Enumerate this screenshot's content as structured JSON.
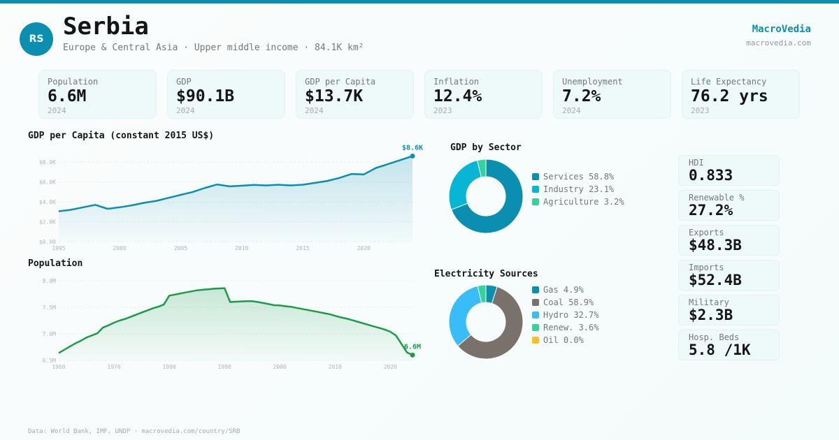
{
  "header": {
    "country_code": "RS",
    "title": "Serbia",
    "subtitle": "Europe & Central Asia · Upper middle income · 84.1K km²",
    "brand": "MacroVedia",
    "brand_url": "macrovedia.com"
  },
  "colors": {
    "accent": "#0a8fb0",
    "population_line": "#1a9c4a"
  },
  "kpis": [
    {
      "label": "Population",
      "value": "6.6M",
      "year": "2024"
    },
    {
      "label": "GDP",
      "value": "$90.1B",
      "year": "2024"
    },
    {
      "label": "GDP per Capita",
      "value": "$13.7K",
      "year": "2024"
    },
    {
      "label": "Inflation",
      "value": "12.4%",
      "year": "2023"
    },
    {
      "label": "Unemployment",
      "value": "7.2%",
      "year": "2024"
    },
    {
      "label": "Life Expectancy",
      "value": "76.2 yrs",
      "year": "2023"
    }
  ],
  "side_stats": [
    {
      "label": "HDI",
      "value": "0.833"
    },
    {
      "label": "Renewable %",
      "value": "27.2%"
    },
    {
      "label": "Exports",
      "value": "$48.3B"
    },
    {
      "label": "Imports",
      "value": "$52.4B"
    },
    {
      "label": "Military",
      "value": "$2.3B"
    },
    {
      "label": "Hosp. Beds",
      "value": "5.8 /1K"
    }
  ],
  "footer": "Data: World Bank, IMF, UNDP · macrovedia.com/country/SRB",
  "chart_data": [
    {
      "id": "gdp_per_capita",
      "type": "area",
      "title": "GDP per Capita (constant 2015 US$)",
      "color": "#0a8fb0",
      "x": [
        1995,
        1996,
        1997,
        1998,
        1999,
        2000,
        2001,
        2002,
        2003,
        2004,
        2005,
        2006,
        2007,
        2008,
        2009,
        2010,
        2011,
        2012,
        2013,
        2014,
        2015,
        2016,
        2017,
        2018,
        2019,
        2020,
        2021,
        2022,
        2023,
        2024
      ],
      "values": [
        3050,
        3200,
        3450,
        3700,
        3300,
        3450,
        3650,
        3900,
        4100,
        4400,
        4700,
        5000,
        5400,
        5750,
        5550,
        5620,
        5700,
        5650,
        5720,
        5650,
        5720,
        5900,
        6100,
        6400,
        6800,
        6750,
        7400,
        7800,
        8200,
        8600
      ],
      "ylim": [
        0,
        8000
      ],
      "yticks": [
        0,
        2000,
        4000,
        6000,
        8000
      ],
      "ytick_labels": [
        "$0.00",
        "$2.0K",
        "$4.0K",
        "$6.0K",
        "$8.0K"
      ],
      "xticks": [
        1995,
        2000,
        2005,
        2010,
        2015,
        2020
      ],
      "xtick_labels": [
        "1995",
        "2000",
        "2005",
        "2010",
        "2015",
        "2020"
      ],
      "end_label": "$8.6K",
      "grid": true
    },
    {
      "id": "population",
      "type": "area",
      "title": "Population",
      "color": "#1a9c4a",
      "x": [
        1960,
        1961,
        1962,
        1963,
        1964,
        1965,
        1966,
        1967,
        1968,
        1969,
        1970,
        1971,
        1972,
        1973,
        1974,
        1975,
        1976,
        1977,
        1978,
        1979,
        1980,
        1981,
        1982,
        1983,
        1984,
        1985,
        1986,
        1987,
        1988,
        1989,
        1990,
        1991,
        1992,
        1993,
        1994,
        1995,
        1996,
        1997,
        1998,
        1999,
        2000,
        2001,
        2002,
        2003,
        2004,
        2005,
        2006,
        2007,
        2008,
        2009,
        2010,
        2011,
        2012,
        2013,
        2014,
        2015,
        2016,
        2017,
        2018,
        2019,
        2020,
        2021,
        2022,
        2023,
        2024
      ],
      "values": [
        6.64,
        6.7,
        6.76,
        6.82,
        6.87,
        6.93,
        6.97,
        7.01,
        7.12,
        7.16,
        7.21,
        7.25,
        7.28,
        7.32,
        7.36,
        7.4,
        7.44,
        7.48,
        7.51,
        7.55,
        7.72,
        7.74,
        7.76,
        7.78,
        7.8,
        7.82,
        7.83,
        7.84,
        7.85,
        7.855,
        7.86,
        7.6,
        7.605,
        7.61,
        7.615,
        7.615,
        7.6,
        7.58,
        7.56,
        7.54,
        7.535,
        7.52,
        7.51,
        7.49,
        7.47,
        7.45,
        7.43,
        7.41,
        7.39,
        7.37,
        7.34,
        7.31,
        7.29,
        7.26,
        7.23,
        7.2,
        7.17,
        7.14,
        7.11,
        7.08,
        7.04,
        6.97,
        6.81,
        6.65,
        6.6
      ],
      "ylim": [
        6.5,
        8.0
      ],
      "yticks": [
        6.5,
        7.0,
        7.5,
        8.0
      ],
      "ytick_labels": [
        "6.5M",
        "7.0M",
        "7.5M",
        "8.0M"
      ],
      "xticks": [
        1960,
        1970,
        1980,
        1990,
        2000,
        2010,
        2020
      ],
      "xtick_labels": [
        "1960",
        "1970",
        "1980",
        "1990",
        "2000",
        "2010",
        "2020"
      ],
      "end_label": "6.6M",
      "grid": true
    },
    {
      "id": "gdp_by_sector",
      "type": "pie",
      "title": "GDP by Sector",
      "categories": [
        "Services",
        "Industry",
        "Agriculture"
      ],
      "values": [
        58.8,
        23.1,
        3.2
      ],
      "labels": [
        "Services 58.8%",
        "Industry 23.1%",
        "Agriculture 3.2%"
      ],
      "colors": [
        "#0a8fb0",
        "#06b6d4",
        "#34d399"
      ],
      "legend": "right"
    },
    {
      "id": "electricity_sources",
      "type": "pie",
      "title": "Electricity Sources",
      "categories": [
        "Gas",
        "Coal",
        "Hydro",
        "Renew.",
        "Oil"
      ],
      "values": [
        4.9,
        58.9,
        32.7,
        3.6,
        0.0
      ],
      "labels": [
        "Gas 4.9%",
        "Coal 58.9%",
        "Hydro 32.7%",
        "Renew. 3.6%",
        "Oil 0.0%"
      ],
      "colors": [
        "#0a8fb0",
        "#78716c",
        "#38bdf8",
        "#34d399",
        "#fbbf24"
      ],
      "legend": "right"
    }
  ]
}
